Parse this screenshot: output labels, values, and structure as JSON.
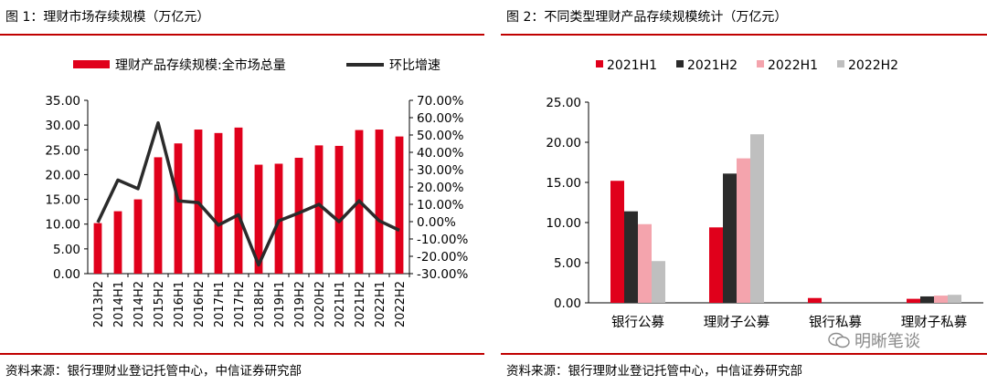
{
  "figures": [
    {
      "title": "图 1：理财市场存续规模（万亿元）",
      "source": "资料来源：银行理财业登记托管中心，中信证券研究部"
    },
    {
      "title": "图 2：不同类型理财产品存续规模统计（万亿元）",
      "source": "资料来源：银行理财业登记托管中心，中信证券研究部"
    }
  ],
  "watermark": {
    "text": "明晰笔谈",
    "icon": "wechat-icon"
  },
  "chart_data": [
    {
      "type": "bar+line",
      "title": "",
      "categories": [
        "2013H2",
        "2014H1",
        "2014H2",
        "2015H2",
        "2016H1",
        "2016H2",
        "2017H1",
        "2017H2",
        "2018H2",
        "2019H1",
        "2019H2",
        "2020H2",
        "2021H1",
        "2021H2",
        "2022H1",
        "2022H2"
      ],
      "series": [
        {
          "name": "理财产品存续规模:全市场总量",
          "type": "bar",
          "axis": "left",
          "color": "#e0001b",
          "values": [
            10.2,
            12.6,
            15.0,
            23.5,
            26.3,
            29.1,
            28.4,
            29.5,
            22.0,
            22.2,
            23.4,
            25.9,
            25.8,
            29.0,
            29.1,
            27.7
          ]
        },
        {
          "name": "环比增速",
          "type": "line",
          "axis": "right",
          "color": "#2b2b2b",
          "values": [
            -0.5,
            24.0,
            19.0,
            57.0,
            12.0,
            11.0,
            -2.0,
            4.0,
            -25.0,
            0.5,
            5.0,
            10.0,
            0.0,
            12.0,
            0.5,
            -5.0
          ]
        }
      ],
      "yleft": {
        "min": 0,
        "max": 35,
        "step": 5,
        "ticks": [
          "0.00",
          "5.00",
          "10.00",
          "15.00",
          "20.00",
          "25.00",
          "30.00",
          "35.00"
        ]
      },
      "yright": {
        "min": -30,
        "max": 70,
        "step": 10,
        "ticks": [
          "-30.00%",
          "-20.00%",
          "-10.00%",
          "0.00%",
          "10.00%",
          "20.00%",
          "30.00%",
          "40.00%",
          "50.00%",
          "60.00%",
          "70.00%"
        ]
      },
      "legend_position": "top",
      "grid": false
    },
    {
      "type": "bar",
      "title": "",
      "categories": [
        "银行公募",
        "理财子公募",
        "银行私募",
        "理财子私募"
      ],
      "series": [
        {
          "name": "2021H1",
          "color": "#e0001b",
          "values": [
            15.2,
            9.4,
            0.6,
            0.5
          ]
        },
        {
          "name": "2021H2",
          "color": "#2b2b2b",
          "values": [
            11.4,
            16.1,
            0.0,
            0.8
          ]
        },
        {
          "name": "2022H1",
          "color": "#f4a4ad",
          "values": [
            9.8,
            18.0,
            0.0,
            0.9
          ]
        },
        {
          "name": "2022H2",
          "color": "#bfbfbf",
          "values": [
            5.2,
            21.0,
            0.0,
            1.0
          ]
        }
      ],
      "y": {
        "min": 0,
        "max": 25,
        "step": 5,
        "ticks": [
          "0.00",
          "5.00",
          "10.00",
          "15.00",
          "20.00",
          "25.00"
        ]
      },
      "legend_position": "top",
      "grid": false
    }
  ]
}
